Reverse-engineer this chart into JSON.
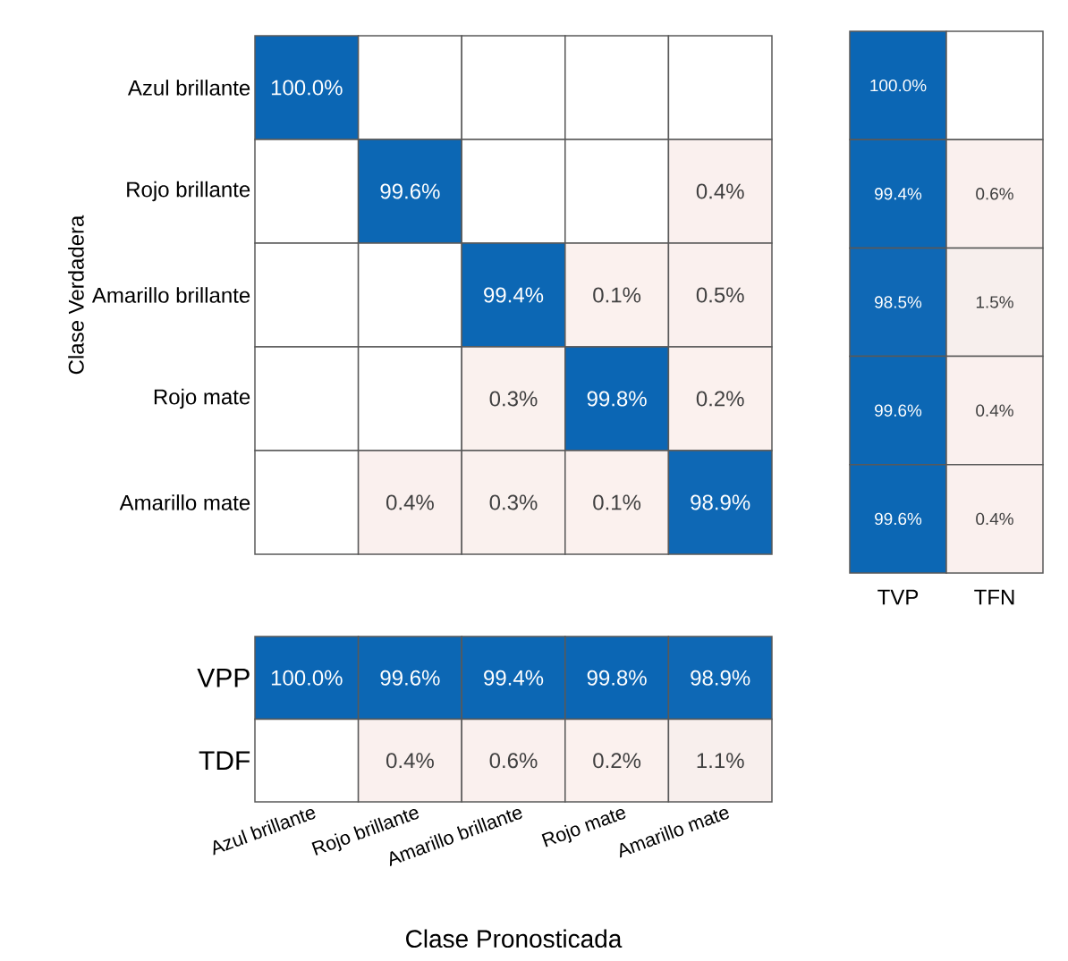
{
  "chart_data": [
    {
      "type": "heatmap",
      "ylabel": "Clase Verdadera",
      "tick_labels": "y",
      "categories": [
        null,
        null,
        null,
        null,
        null
      ],
      "y_categories": [
        "Azul brillante",
        "Rojo brillante",
        "Amarillo brillante",
        "Rojo mate",
        "Amarillo mate"
      ],
      "cells": [
        [
          100.0,
          null,
          null,
          null,
          null
        ],
        [
          null,
          99.6,
          null,
          null,
          0.4
        ],
        [
          null,
          null,
          99.4,
          0.1,
          0.5
        ],
        [
          null,
          null,
          0.3,
          99.8,
          0.2
        ],
        [
          null,
          0.4,
          0.3,
          0.1,
          98.9
        ]
      ],
      "cell_labels": [
        [
          "100.0%",
          null,
          null,
          null,
          null
        ],
        [
          null,
          "99.6%",
          null,
          null,
          "0.4%"
        ],
        [
          null,
          null,
          "99.4%",
          "0.1%",
          "0.5%"
        ],
        [
          null,
          null,
          "0.3%",
          "99.8%",
          "0.2%"
        ],
        [
          null,
          "0.4%",
          "0.3%",
          "0.1%",
          "98.9%"
        ]
      ]
    },
    {
      "type": "heatmap",
      "tick_labels": "x",
      "categories": [
        "TVP",
        "TFN"
      ],
      "y_categories": [
        null,
        null,
        null,
        null,
        null
      ],
      "cells": [
        [
          100.0,
          null
        ],
        [
          99.4,
          0.6
        ],
        [
          98.5,
          1.5
        ],
        [
          99.6,
          0.4
        ],
        [
          99.6,
          0.4
        ]
      ],
      "cell_labels": [
        [
          "100.0%",
          null
        ],
        [
          "99.4%",
          "0.6%"
        ],
        [
          "98.5%",
          "1.5%"
        ],
        [
          "99.6%",
          "0.4%"
        ],
        [
          "99.6%",
          "0.4%"
        ]
      ]
    },
    {
      "type": "heatmap",
      "xlabel": "Clase Pronosticada",
      "categories": [
        "Azul brillante",
        "Rojo brillante",
        "Amarillo brillante",
        "Rojo mate",
        "Amarillo mate"
      ],
      "y_categories": [
        "VPP",
        "TDF"
      ],
      "cells": [
        [
          100.0,
          99.6,
          99.4,
          99.8,
          98.9
        ],
        [
          null,
          0.4,
          0.6,
          0.2,
          1.1
        ]
      ],
      "cell_labels": [
        [
          "100.0%",
          "99.6%",
          "99.4%",
          "99.8%",
          "98.9%"
        ],
        [
          null,
          "0.4%",
          "0.6%",
          "0.2%",
          "1.1%"
        ]
      ]
    }
  ]
}
